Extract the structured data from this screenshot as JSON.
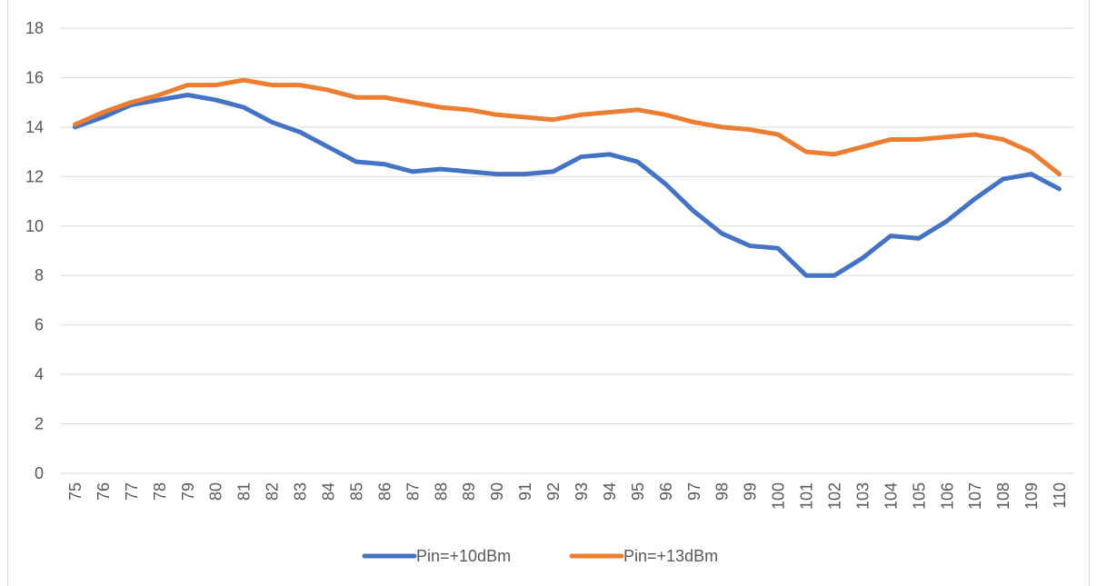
{
  "chart_data": {
    "type": "line",
    "title": "",
    "xlabel": "",
    "ylabel": "",
    "categories": [
      "75",
      "76",
      "77",
      "78",
      "79",
      "80",
      "81",
      "82",
      "83",
      "84",
      "85",
      "86",
      "87",
      "88",
      "89",
      "90",
      "91",
      "92",
      "93",
      "94",
      "95",
      "96",
      "97",
      "98",
      "99",
      "100",
      "101",
      "102",
      "103",
      "104",
      "105",
      "106",
      "107",
      "108",
      "109",
      "110"
    ],
    "ylim": [
      0,
      18
    ],
    "yticks": [
      "0",
      "2",
      "4",
      "6",
      "8",
      "10",
      "12",
      "14",
      "16",
      "18"
    ],
    "grid": true,
    "legend_position": "bottom",
    "series": [
      {
        "name": "Pin=+10dBm",
        "color": "#4472c4",
        "values": [
          14.0,
          14.4,
          14.9,
          15.1,
          15.3,
          15.1,
          14.8,
          14.2,
          13.8,
          13.2,
          12.6,
          12.5,
          12.2,
          12.3,
          12.2,
          12.1,
          12.1,
          12.2,
          12.8,
          12.9,
          12.6,
          11.7,
          10.6,
          9.7,
          9.2,
          9.1,
          8.0,
          8.0,
          8.7,
          9.6,
          9.5,
          10.2,
          11.1,
          11.9,
          12.1,
          11.5
        ]
      },
      {
        "name": "Pin=+13dBm",
        "color": "#ed7d31",
        "values": [
          14.1,
          14.6,
          15.0,
          15.3,
          15.7,
          15.7,
          15.9,
          15.7,
          15.7,
          15.5,
          15.2,
          15.2,
          15.0,
          14.8,
          14.7,
          14.5,
          14.4,
          14.3,
          14.5,
          14.6,
          14.7,
          14.5,
          14.2,
          14.0,
          13.9,
          13.7,
          13.0,
          12.9,
          13.2,
          13.5,
          13.5,
          13.6,
          13.7,
          13.5,
          13.0,
          12.1
        ]
      }
    ]
  }
}
